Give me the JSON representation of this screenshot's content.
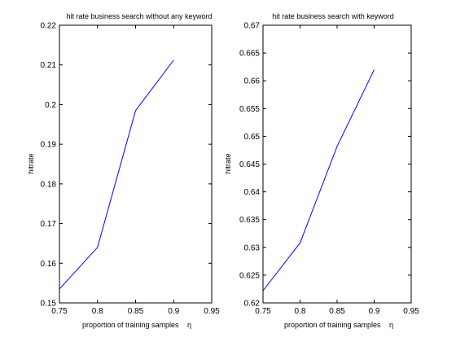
{
  "chart_data": [
    {
      "type": "line",
      "title": "hit rate business search without any keyword",
      "xlabel": "proportion of training samples",
      "xlabel_symbol": "η",
      "ylabel": "hitrate",
      "xlim": [
        0.75,
        0.95
      ],
      "ylim": [
        0.15,
        0.22
      ],
      "xticks": [
        "0.75",
        "0.8",
        "0.85",
        "0.9",
        "0.95"
      ],
      "yticks": [
        "0.15",
        "0.16",
        "0.17",
        "0.18",
        "0.19",
        "0.2",
        "0.21",
        "0.22"
      ],
      "grid": false,
      "line_color": "#0000ff",
      "series": [
        {
          "x": [
            0.75,
            0.8,
            0.85,
            0.9
          ],
          "y": [
            0.1535,
            0.164,
            0.1985,
            0.2112
          ]
        }
      ]
    },
    {
      "type": "line",
      "title": "hit rate business search with keyword",
      "xlabel": "proportion of training samples",
      "xlabel_symbol": "η",
      "ylabel": "hitrate",
      "xlim": [
        0.75,
        0.95
      ],
      "ylim": [
        0.62,
        0.67
      ],
      "xticks": [
        "0.75",
        "0.8",
        "0.85",
        "0.9",
        "0.95"
      ],
      "yticks": [
        "0.62",
        "0.625",
        "0.63",
        "0.635",
        "0.64",
        "0.645",
        "0.65",
        "0.655",
        "0.66",
        "0.665",
        "0.67"
      ],
      "grid": false,
      "line_color": "#0000ff",
      "series": [
        {
          "x": [
            0.75,
            0.8,
            0.85,
            0.9
          ],
          "y": [
            0.6222,
            0.6308,
            0.6482,
            0.662
          ]
        }
      ]
    }
  ]
}
